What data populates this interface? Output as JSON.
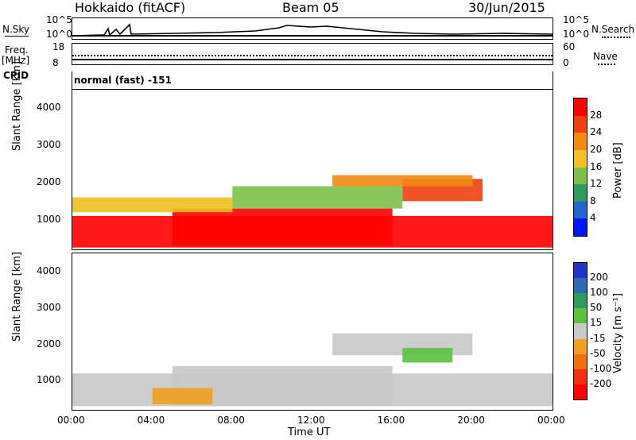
{
  "header": {
    "title": "Hokkaido (fitACF)",
    "beam": "Beam 05",
    "date": "30/Jun/2015"
  },
  "top_panels": {
    "nsky_label": "N.Sky",
    "nsearch_label": "N.Search",
    "noise_ticks": [
      "10^5",
      "10^0"
    ],
    "freq_label": "Freq.",
    "freq_unit": "[MHz]",
    "freq_ticks": [
      "18",
      "8"
    ],
    "nave_label": "Nave",
    "nave_ticks": [
      "60",
      "0"
    ],
    "cpid_label": "CPID",
    "cpid_text": "normal (fast) -151"
  },
  "chart_data": [
    {
      "type": "heatmap",
      "name": "power",
      "ylabel": "Slant Range [km]",
      "xlabel": "",
      "ylim": [
        200,
        4500
      ],
      "yticks": [
        "1000",
        "2000",
        "3000",
        "4000"
      ],
      "xticks": [
        "00:00",
        "04:00",
        "08:00",
        "12:00",
        "16:00",
        "20:00",
        "00:00"
      ],
      "colorbar_label": "Power [dB]",
      "colorbar_ticks": [
        "4",
        "8",
        "12",
        "16",
        "20",
        "24",
        "28"
      ],
      "colors": [
        "#0018f0",
        "#2266cc",
        "#2e9a5c",
        "#7cc04a",
        "#f0c020",
        "#f08a10",
        "#f04010",
        "#ff0000"
      ],
      "regions": [
        {
          "x0": 0.0,
          "x1": 24.0,
          "y0": 250,
          "y1": 1100,
          "level": 7
        },
        {
          "x0": 5.0,
          "x1": 16.0,
          "y0": 300,
          "y1": 1300,
          "level": 7
        },
        {
          "x0": 16.5,
          "x1": 20.5,
          "y0": 1500,
          "y1": 2100,
          "level": 6
        },
        {
          "x0": 0.0,
          "x1": 8.0,
          "y0": 1200,
          "y1": 1600,
          "level": 4
        },
        {
          "x0": 8.0,
          "x1": 16.5,
          "y0": 1300,
          "y1": 1900,
          "level": 3
        },
        {
          "x0": 13.0,
          "x1": 20.0,
          "y0": 1900,
          "y1": 2200,
          "level": 5
        }
      ]
    },
    {
      "type": "heatmap",
      "name": "velocity",
      "ylabel": "Slant Range [km]",
      "xlabel": "Time UT",
      "ylim": [
        200,
        4500
      ],
      "yticks": [
        "1000",
        "2000",
        "3000",
        "4000"
      ],
      "xticks": [
        "00:00",
        "04:00",
        "08:00",
        "12:00",
        "16:00",
        "20:00",
        "00:00"
      ],
      "colorbar_label": "Velocity [m s⁻¹]",
      "colorbar_ticks": [
        "200",
        "100",
        "50",
        "15",
        "-15",
        "-50",
        "-100",
        "-200"
      ],
      "colors": [
        "#2233cc",
        "#2e6ab0",
        "#2e9a5c",
        "#5cc040",
        "#c8c8c8",
        "#f0a020",
        "#f07010",
        "#f03010",
        "#ff0000"
      ],
      "regions": [
        {
          "x0": 0.0,
          "x1": 24.0,
          "y0": 300,
          "y1": 1200,
          "level": 4
        },
        {
          "x0": 5.0,
          "x1": 16.0,
          "y0": 300,
          "y1": 1400,
          "level": 4
        },
        {
          "x0": 13.0,
          "x1": 20.0,
          "y0": 1700,
          "y1": 2300,
          "level": 4
        },
        {
          "x0": 4.0,
          "x1": 7.0,
          "y0": 350,
          "y1": 800,
          "level": 5
        },
        {
          "x0": 16.5,
          "x1": 19.0,
          "y0": 1500,
          "y1": 1900,
          "level": 3
        }
      ]
    }
  ]
}
